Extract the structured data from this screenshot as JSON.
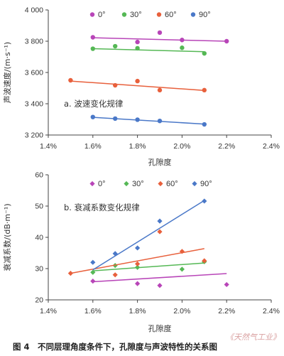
{
  "colors": {
    "0": "#b845b8",
    "30": "#55b855",
    "60": "#e8603c",
    "90": "#4a78c8",
    "axis": "#444444"
  },
  "figure": {
    "caption": "图 4　不同层理角度条件下，孔隙度与声波特性的关系图",
    "watermark": "《天然气工业》"
  },
  "chart_data": [
    {
      "type": "scatter",
      "panel_title": "a. 波速变化规律",
      "xlabel": "孔隙度",
      "ylabel": "声波速度/(m·s⁻¹)",
      "xlim": [
        0.014,
        0.024
      ],
      "ylim": [
        3200,
        4000
      ],
      "xticks": [
        0.014,
        0.016,
        0.018,
        0.02,
        0.022,
        0.024
      ],
      "xtick_labels": [
        "1.4%",
        "1.6%",
        "1.8%",
        "2.0%",
        "2.2%",
        "2.4%"
      ],
      "yticks": [
        3200,
        3400,
        3600,
        3800,
        4000
      ],
      "ytick_labels": [
        "3 200",
        "3 400",
        "3 600",
        "3 800",
        "4 000"
      ],
      "marker": "circle",
      "legend": "top",
      "series": [
        {
          "name": "0°",
          "key": "0",
          "x": [
            0.016,
            0.018,
            0.019,
            0.02,
            0.022
          ],
          "y": [
            3825,
            3795,
            3855,
            3808,
            3800
          ],
          "trend": [
            [
              0.016,
              3822
            ],
            [
              0.022,
              3800
            ]
          ]
        },
        {
          "name": "30°",
          "key": "30",
          "x": [
            0.016,
            0.017,
            0.018,
            0.02,
            0.021
          ],
          "y": [
            3752,
            3768,
            3755,
            3758,
            3722
          ],
          "trend": [
            [
              0.016,
              3752
            ],
            [
              0.021,
              3733
            ]
          ]
        },
        {
          "name": "60°",
          "key": "60",
          "x": [
            0.015,
            0.017,
            0.018,
            0.019,
            0.021
          ],
          "y": [
            3550,
            3518,
            3545,
            3487,
            3487
          ],
          "trend": [
            [
              0.015,
              3545
            ],
            [
              0.021,
              3485
            ]
          ]
        },
        {
          "name": "90°",
          "key": "90",
          "x": [
            0.016,
            0.017,
            0.018,
            0.019,
            0.021
          ],
          "y": [
            3315,
            3305,
            3298,
            3290,
            3268
          ],
          "trend": [
            [
              0.016,
              3313
            ],
            [
              0.021,
              3270
            ]
          ]
        }
      ]
    },
    {
      "type": "scatter",
      "panel_title": "b. 衰减系数变化规律",
      "xlabel": "孔隙度",
      "ylabel": "衰减系数/(dB·m⁻¹)",
      "xlim": [
        0.014,
        0.024
      ],
      "ylim": [
        20,
        60
      ],
      "xticks": [
        0.014,
        0.016,
        0.018,
        0.02,
        0.022,
        0.024
      ],
      "xtick_labels": [
        "1.4%",
        "1.6%",
        "1.8%",
        "2.0%",
        "2.2%",
        "2.4%"
      ],
      "yticks": [
        20,
        30,
        40,
        50,
        60
      ],
      "ytick_labels": [
        "20",
        "30",
        "40",
        "50",
        "60"
      ],
      "marker": "diamond",
      "legend": "top",
      "series": [
        {
          "name": "0°",
          "key": "0",
          "x": [
            0.016,
            0.018,
            0.019,
            0.022
          ],
          "y": [
            26.0,
            25.2,
            24.6,
            24.9
          ],
          "trend": [
            [
              0.016,
              25.8
            ],
            [
              0.022,
              28.4
            ]
          ]
        },
        {
          "name": "30°",
          "key": "30",
          "x": [
            0.016,
            0.017,
            0.018,
            0.02,
            0.021
          ],
          "y": [
            28.8,
            31.0,
            30.4,
            29.8,
            32.2
          ],
          "trend": [
            [
              0.016,
              29.3
            ],
            [
              0.021,
              31.8
            ]
          ]
        },
        {
          "name": "60°",
          "key": "60",
          "x": [
            0.015,
            0.017,
            0.018,
            0.019,
            0.02,
            0.021
          ],
          "y": [
            28.5,
            28.0,
            31.5,
            41.8,
            35.5,
            32.5
          ],
          "trend": [
            [
              0.015,
              28.5
            ],
            [
              0.021,
              36.4
            ]
          ]
        },
        {
          "name": "90°",
          "key": "90",
          "x": [
            0.016,
            0.017,
            0.018,
            0.019,
            0.021
          ],
          "y": [
            32.0,
            34.8,
            36.6,
            45.2,
            51.6
          ],
          "trend": [
            [
              0.016,
              29.6
            ],
            [
              0.021,
              51.8
            ]
          ]
        }
      ]
    }
  ]
}
